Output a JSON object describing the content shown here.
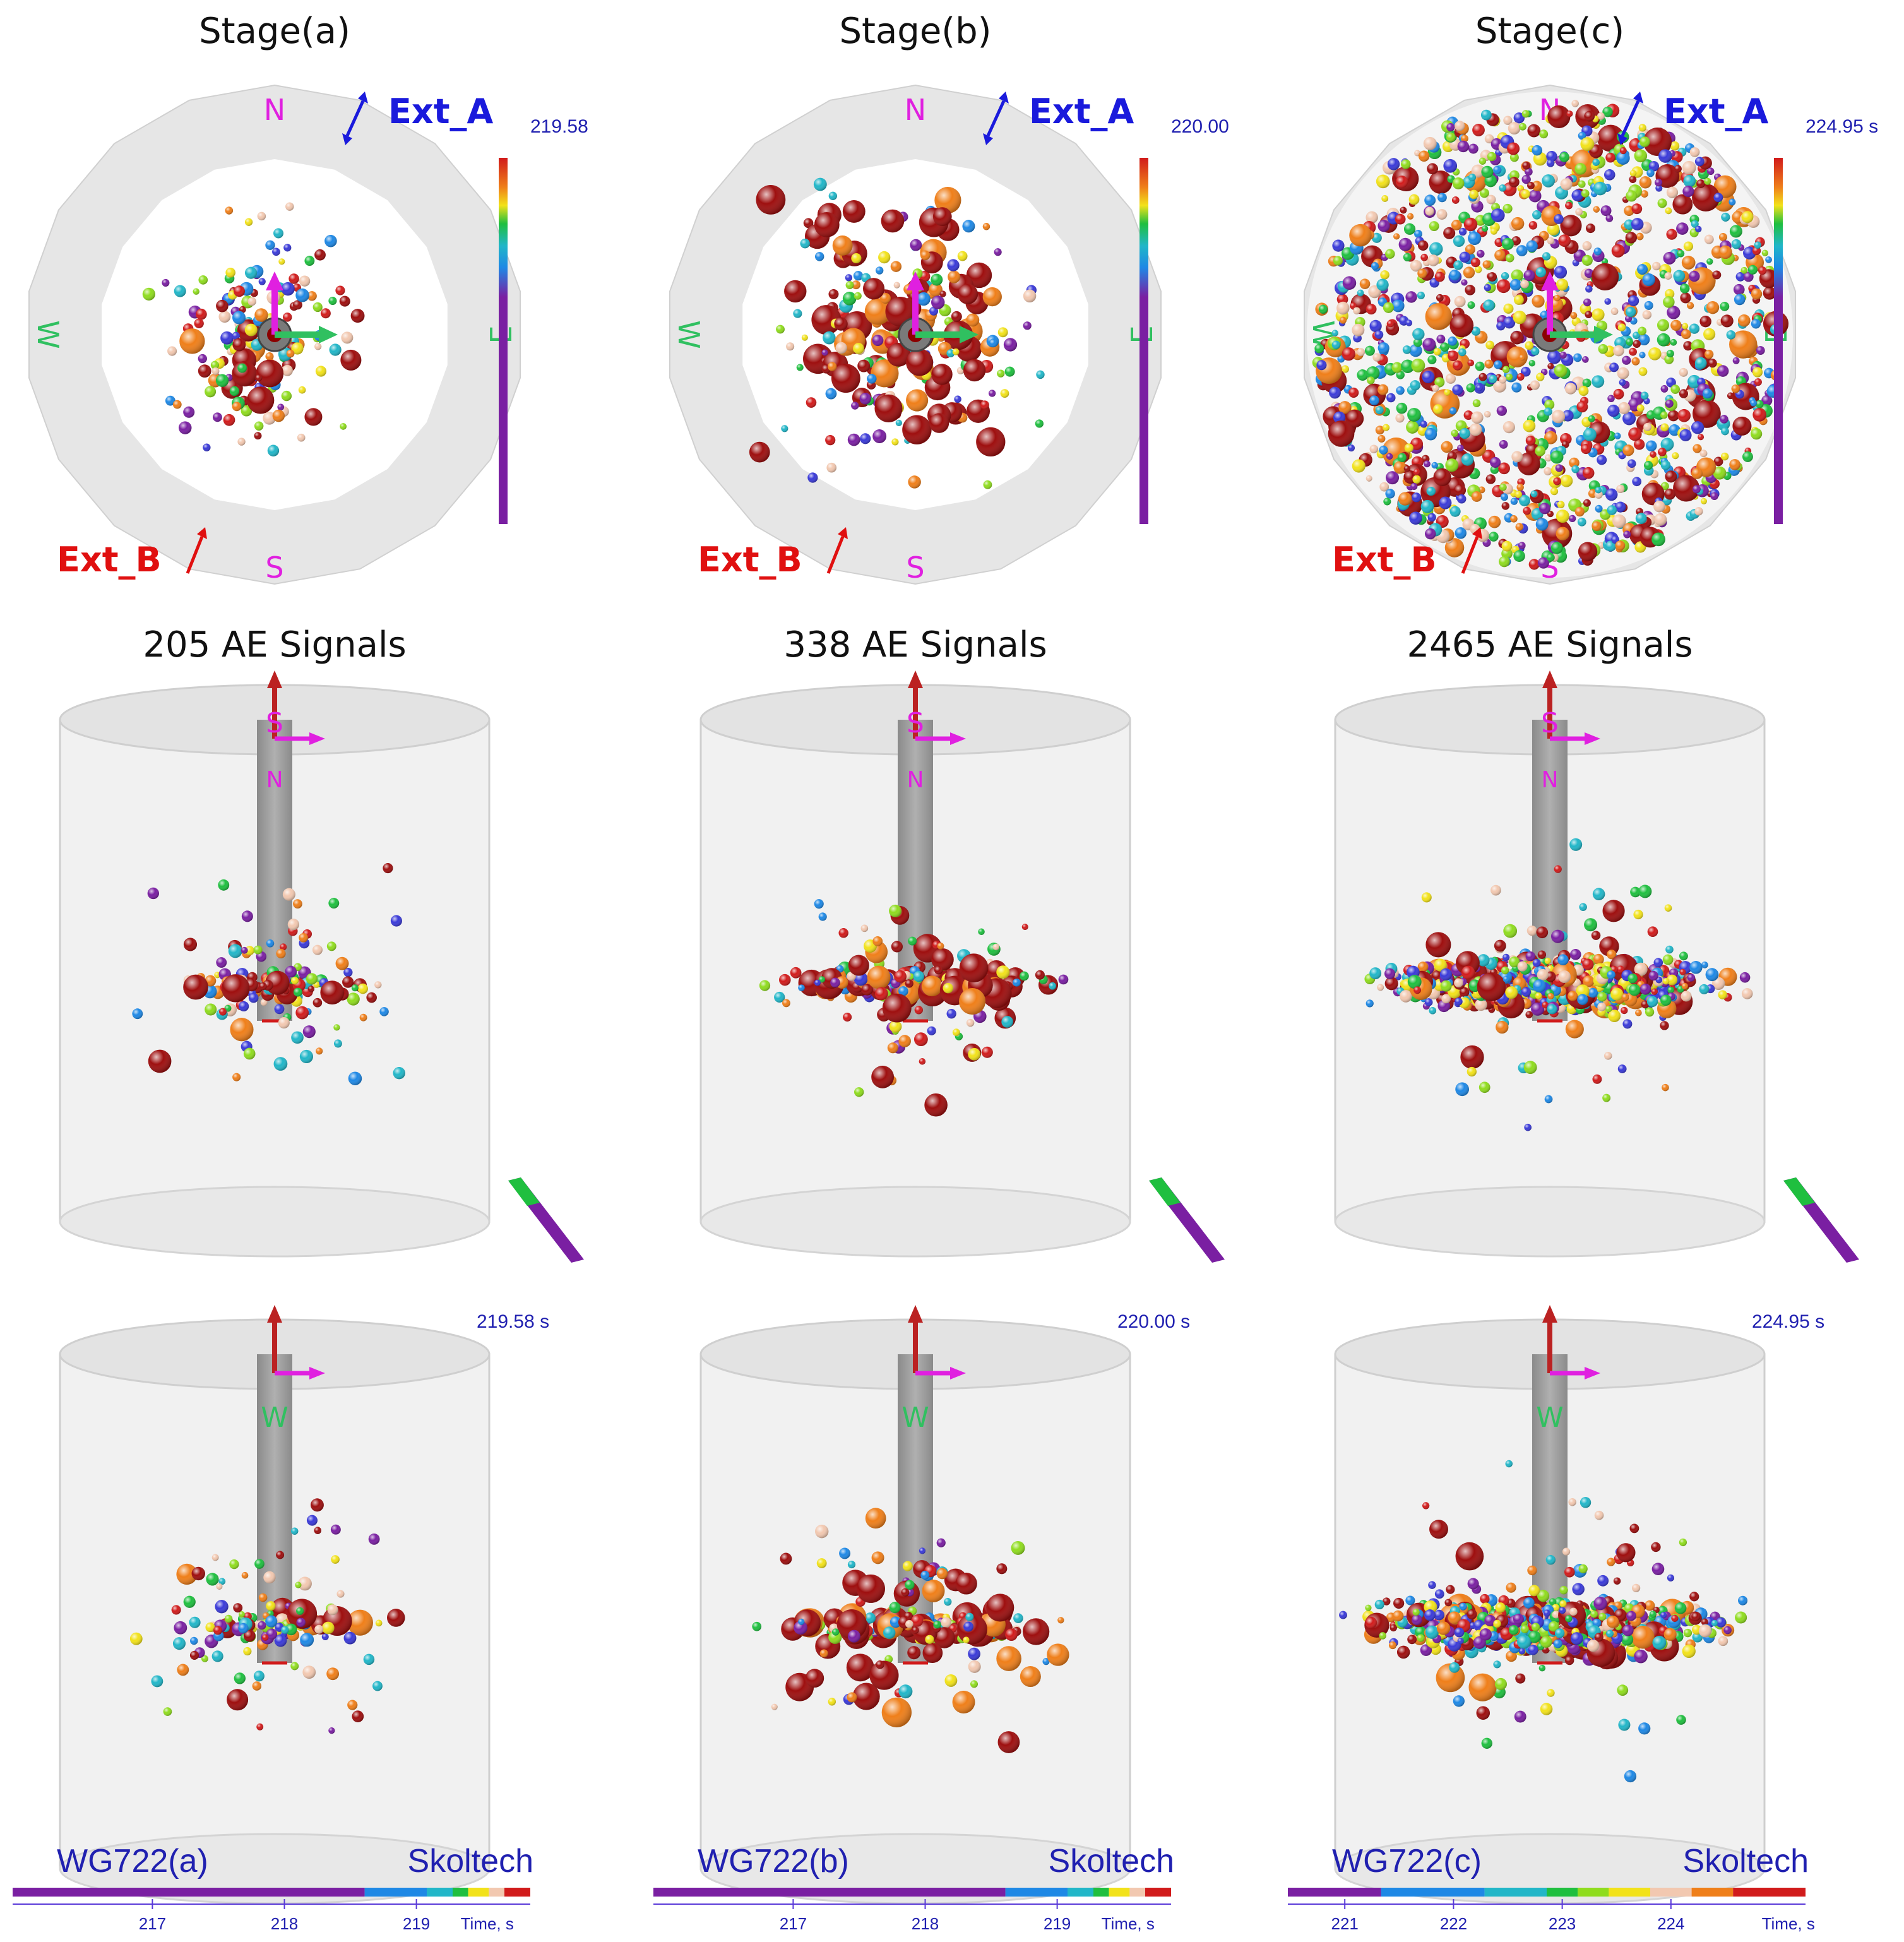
{
  "stages": [
    {
      "id": "a",
      "title": "Stage(a)",
      "count_label": "205 AE Signals",
      "signal_count": 205,
      "time_label_top": "219.58",
      "time_label_bottom": "219.58  s",
      "watermark": "WG722(a)",
      "brand": "Skoltech",
      "time_axis": {
        "ticks": [
          "217",
          "218",
          "219"
        ],
        "unit_label": "Time, s"
      },
      "spread": "small"
    },
    {
      "id": "b",
      "title": "Stage(b)",
      "count_label": "338 AE Signals",
      "signal_count": 338,
      "time_label_top": "220.00",
      "time_label_bottom": "220.00  s",
      "watermark": "WG722(b)",
      "brand": "Skoltech",
      "time_axis": {
        "ticks": [
          "217",
          "218",
          "219"
        ],
        "unit_label": "Time, s"
      },
      "spread": "medium"
    },
    {
      "id": "c",
      "title": "Stage(c)",
      "count_label": "2465 AE Signals",
      "signal_count": 2465,
      "time_label_top": "224.95  s",
      "time_label_bottom": "224.95  s",
      "watermark": "WG722(c)",
      "brand": "Skoltech",
      "time_axis": {
        "ticks": [
          "221",
          "222",
          "223",
          "224"
        ],
        "unit_label": "Time, s"
      },
      "spread": "large"
    }
  ],
  "compass": {
    "north": "N",
    "south": "S",
    "east": "E",
    "west": "W"
  },
  "side_labels": {
    "top_view_marker": "S",
    "upside_marker": "N",
    "front_view_marker": "W"
  },
  "extensometers": {
    "a": "Ext_A",
    "b": "Ext_B"
  },
  "colors": {
    "ext_a": "#1a1adc",
    "ext_b": "#e01010",
    "compass_ns": "#e020e0",
    "compass_ew": "#30c060",
    "time_text": "#2020b0",
    "palette": [
      "#7a1fa2",
      "#3a3ad8",
      "#1e88e5",
      "#21b6c8",
      "#1fbf3f",
      "#8fdc1e",
      "#f2e21a",
      "#f2c8b0",
      "#ef7f1a",
      "#d11b1b",
      "#9e0f0f"
    ]
  }
}
